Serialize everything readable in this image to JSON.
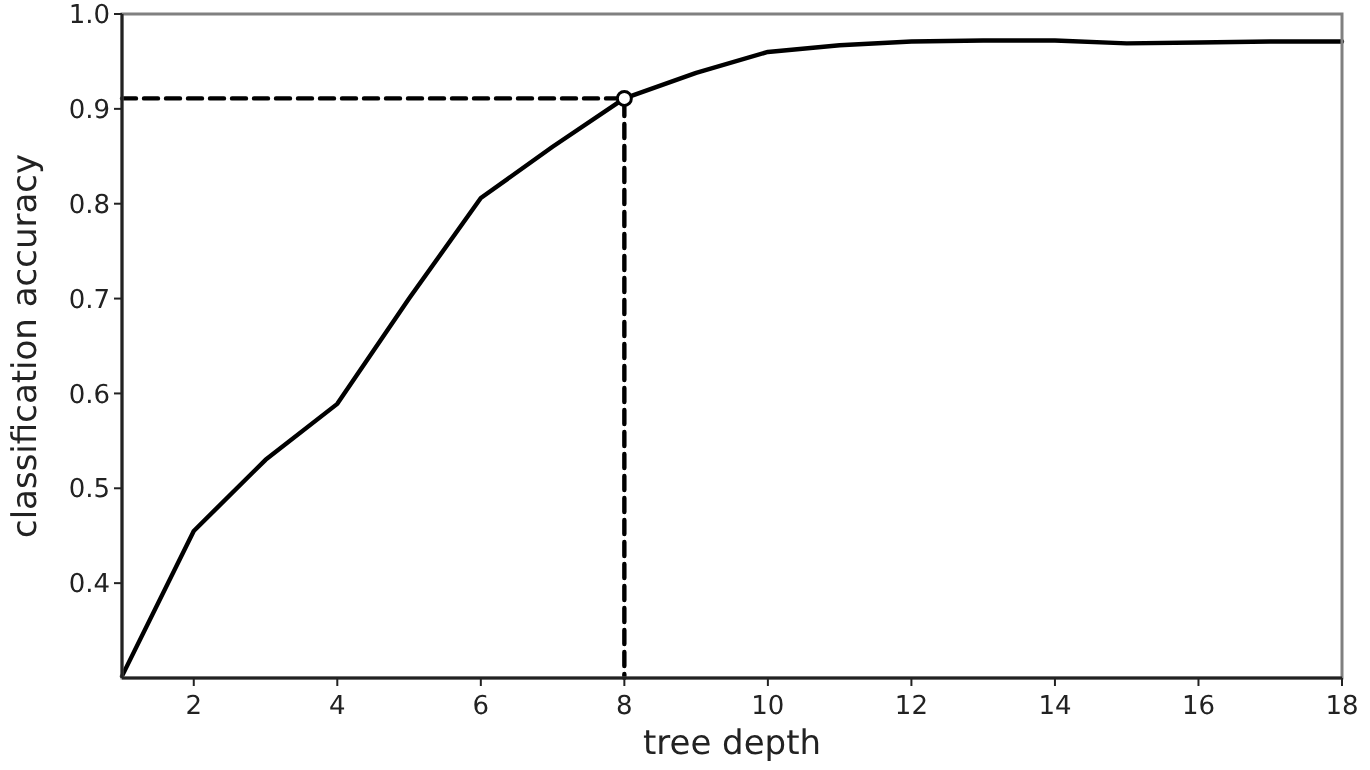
{
  "chart_data": {
    "type": "line",
    "xlabel": "tree depth",
    "ylabel": "classification accuracy",
    "xlim": [
      1,
      18
    ],
    "ylim": [
      0.3,
      1.0
    ],
    "xticks": [
      2,
      4,
      6,
      8,
      10,
      12,
      14,
      16,
      18
    ],
    "yticks": [
      0.4,
      0.5,
      0.6,
      0.7,
      0.8,
      0.9,
      {
        "value": 1.0,
        "label": "1.0"
      }
    ],
    "grid": false,
    "series": [
      {
        "color": "#000000",
        "x": [
          1,
          2,
          3,
          4,
          5,
          6,
          7,
          8,
          9,
          10,
          11,
          12,
          13,
          14,
          15,
          16,
          17,
          18
        ],
        "values": [
          0.302,
          0.455,
          0.53,
          0.589,
          0.7,
          0.806,
          0.86,
          0.911,
          0.938,
          0.96,
          0.967,
          0.971,
          0.972,
          0.972,
          0.969,
          0.97,
          0.971,
          0.971
        ],
        "line_style": "solid",
        "marker": "none"
      },
      {
        "color": "#000000",
        "x": [
          1,
          8,
          8
        ],
        "values": [
          0.911,
          0.911,
          0.3
        ],
        "line_style": "dashed",
        "marker": "none"
      },
      {
        "type": "scatter",
        "color": "#000000",
        "x": [
          8
        ],
        "values": [
          0.911
        ],
        "marker": "circle"
      }
    ]
  }
}
